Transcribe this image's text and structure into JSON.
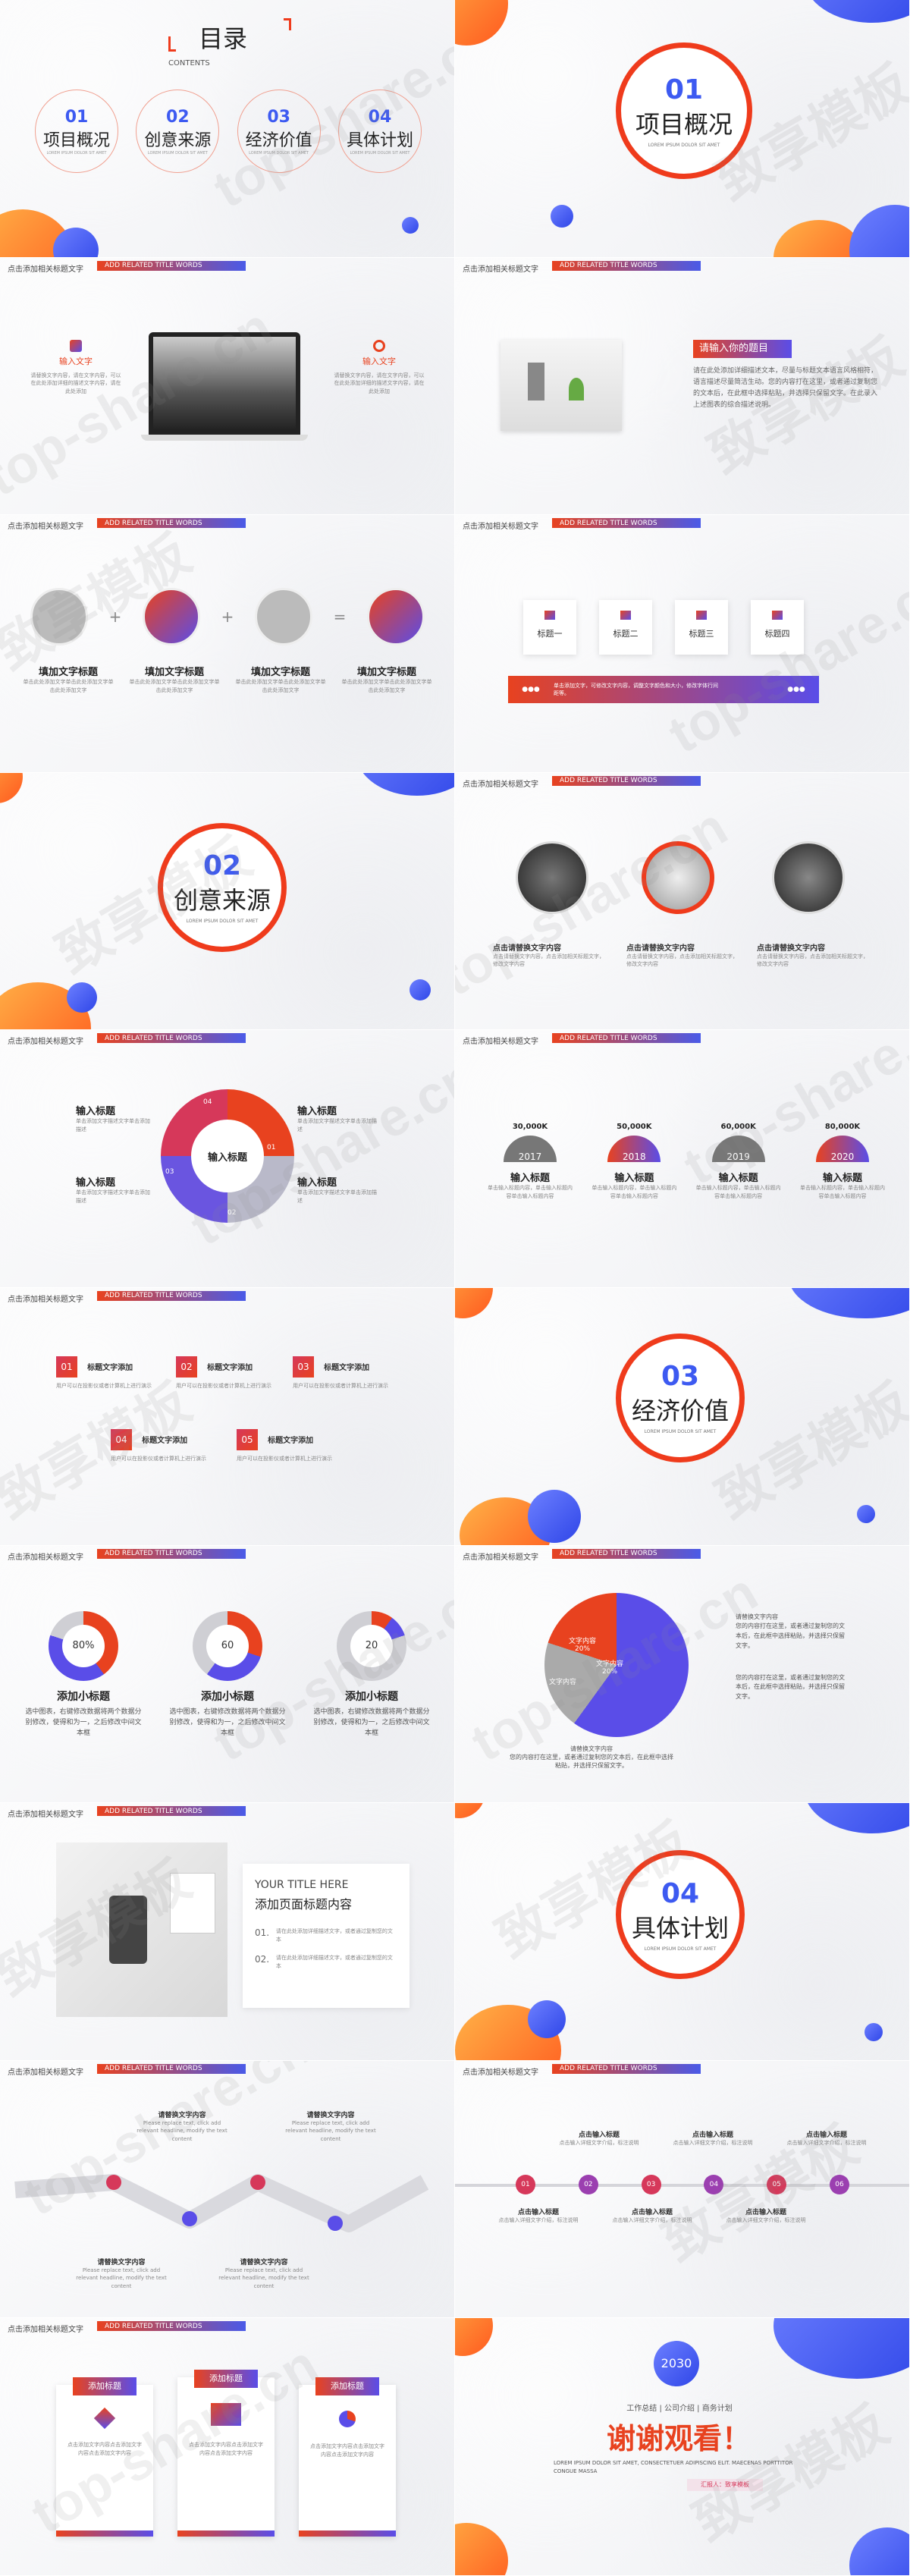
{
  "common": {
    "header_left": "点击添加相关标题文字",
    "header_right": "ADD RELATED TITLE WORDS",
    "wm1": "top-share.cn",
    "wm2": "致享模板"
  },
  "toc": {
    "title": "目录",
    "subtitle": "CONTENTS",
    "tiny": "LOREM IPSUM DOLOR SIT AMET",
    "items": [
      {
        "num": "01",
        "label": "项目概况"
      },
      {
        "num": "02",
        "label": "创意来源"
      },
      {
        "num": "03",
        "label": "经济价值"
      },
      {
        "num": "04",
        "label": "具体计划"
      }
    ]
  },
  "sec1": {
    "num": "01",
    "title": "项目概况",
    "sub": "LOREM IPSUM DOLOR SIT AMET"
  },
  "s3": {
    "left_title": "输入文字",
    "left_text": "请替换文字内容，请在文字内容，可以在此处添加详细的描述文字内容，请在此处添加",
    "right_title": "输入文字",
    "right_text": "请替换文字内容，请在文字内容，可以在此处添加详细的描述文字内容，请在此处添加"
  },
  "s4": {
    "heading": "请输入你的题目",
    "text": "请在此处添加详细描述文本，尽量与标题文本语言风格相符，语言描述尽量简洁生动。您的内容打在这里，或者通过复制您的文本后，在此框中选择粘贴，并选择只保留文字。在此录入上述图表的综合描述说明。"
  },
  "s5": {
    "items": [
      {
        "label": "填加文字标题",
        "text": "单击此处添加文字单击此处添加文字单击此处添加文字"
      },
      {
        "label": "填加文字标题",
        "text": "单击此处添加文字单击此处添加文字单击此处添加文字"
      },
      {
        "label": "填加文字标题",
        "text": "单击此处添加文字单击此处添加文字单击此处添加文字"
      },
      {
        "label": "填加文字标题",
        "text": "单击此处添加文字单击此处添加文字单击此处添加文字"
      }
    ],
    "ops": [
      "+",
      "+",
      "="
    ]
  },
  "s6": {
    "cards": [
      "标题一",
      "标题二",
      "标题三",
      "标题四"
    ],
    "bar_text": "单击添加文字，可修改文字内容，调整文字颜色和大小，修改字体行间距等。",
    "dots": "●●●"
  },
  "sec2": {
    "num": "02",
    "title": "创意来源",
    "sub": "LOREM IPSUM DOLOR SIT AMET"
  },
  "s8": {
    "items": [
      {
        "title": "点击请替换文字内容",
        "text": "点击请替换文字内容，点击添加相关标题文字，修改文字内容"
      },
      {
        "title": "点击请替换文字内容",
        "text": "点击请替换文字内容，点击添加相关标题文字，修改文字内容"
      },
      {
        "title": "点击请替换文字内容",
        "text": "点击请替换文字内容，点击添加相关标题文字，修改文字内容"
      }
    ]
  },
  "s9": {
    "center": "输入标题",
    "labels": [
      {
        "t": "输入标题",
        "d": "单击添加文字描述文字单击添加描述"
      },
      {
        "t": "输入标题",
        "d": "单击添加文字描述文字单击添加描述"
      },
      {
        "t": "输入标题",
        "d": "单击添加文字描述文字单击添加描述"
      },
      {
        "t": "输入标题",
        "d": "单击添加文字描述文字单击添加描述"
      }
    ],
    "nums": [
      "01",
      "02",
      "03",
      "04"
    ]
  },
  "s10": {
    "items": [
      {
        "value": "30,000K",
        "year": "2017",
        "title": "输入标题",
        "text": "单击输入标题内容，单击输入标题内容单击输入标题内容"
      },
      {
        "value": "50,000K",
        "year": "2018",
        "title": "输入标题",
        "text": "单击输入标题内容，单击输入标题内容单击输入标题内容"
      },
      {
        "value": "60,000K",
        "year": "2019",
        "title": "输入标题",
        "text": "单击输入标题内容，单击输入标题内容单击输入标题内容"
      },
      {
        "value": "80,000K",
        "year": "2020",
        "title": "输入标题",
        "text": "单击输入标题内容，单击输入标题内容单击输入标题内容"
      }
    ]
  },
  "s11": {
    "items": [
      {
        "num": "01",
        "title": "标题文字添加",
        "text": "用户可以在投影仪或者计算机上进行演示"
      },
      {
        "num": "02",
        "title": "标题文字添加",
        "text": "用户可以在投影仪或者计算机上进行演示"
      },
      {
        "num": "03",
        "title": "标题文字添加",
        "text": "用户可以在投影仪或者计算机上进行演示"
      },
      {
        "num": "04",
        "title": "标题文字添加",
        "text": "用户可以在投影仪或者计算机上进行演示"
      },
      {
        "num": "05",
        "title": "标题文字添加",
        "text": "用户可以在投影仪或者计算机上进行演示"
      }
    ]
  },
  "sec3": {
    "num": "03",
    "title": "经济价值",
    "sub": "LOREM IPSUM DOLOR SIT AMET"
  },
  "s13": {
    "items": [
      {
        "pct": "80%",
        "value": 0.8,
        "title": "添加小标题",
        "text": "选中图表，右键修改数据将两个数据分别修改，使得和为一，之后修改中间文本框"
      },
      {
        "pct": "60",
        "value": 0.6,
        "title": "添加小标题",
        "text": "选中图表，右键修改数据将两个数据分别修改，使得和为一，之后修改中间文本框"
      },
      {
        "pct": "20",
        "value": 0.2,
        "title": "添加小标题",
        "text": "选中图表，右键修改数据将两个数据分别修改，使得和为一，之后修改中间文本框"
      }
    ]
  },
  "s14": {
    "pie": [
      {
        "label": "文字内容",
        "pct": "20%",
        "value": 20
      },
      {
        "label": "文字内容",
        "pct": "20%",
        "value": 20
      },
      {
        "label": "文字内容",
        "pct": "",
        "value": 60
      }
    ],
    "bottom_text": "请替换文字内容\n您的内容打在这里，或者通过复制您的文本后，在此框中选择粘贴，并选择只保留文字。",
    "r1": "请替换文字内容\n您的内容打在这里，或者通过复制您的文本后，在此框中选择粘贴，并选择只保留文字。",
    "r2": "您的内容打在这里，或者通过复制您的文本后，在此框中选择粘贴，并选择只保留文字。"
  },
  "s15": {
    "en": "YOUR TITLE HERE",
    "cn": "添加页面标题内容",
    "items": [
      {
        "n": "01.",
        "t": "请在此处添加详细描述文字，或者通过复制您的文本"
      },
      {
        "n": "02.",
        "t": "请在此处添加详细描述文字，或者通过复制您的文本"
      }
    ]
  },
  "sec4": {
    "num": "04",
    "title": "具体计划",
    "sub": "LOREM IPSUM DOLOR SIT AMET"
  },
  "s17": {
    "items": [
      {
        "t": "请替换文字内容",
        "d": "Please replace text, click add relevant headline, modify the text content"
      },
      {
        "t": "请替换文字内容",
        "d": "Please replace text, click add relevant headline, modify the text content"
      },
      {
        "t": "请替换文字内容",
        "d": "Please replace text, click add relevant headline, modify the text content"
      },
      {
        "t": "请替换文字内容",
        "d": "Please replace text, click add relevant headline, modify the text content"
      }
    ]
  },
  "s18": {
    "nums": [
      "01",
      "02",
      "03",
      "04",
      "05",
      "06"
    ],
    "top": [
      {
        "t": "点击输入标题",
        "d": "点击输入详细文字介绍，标注说明"
      },
      {
        "t": "点击输入标题",
        "d": "点击输入详细文字介绍，标注说明"
      },
      {
        "t": "点击输入标题",
        "d": "点击输入详细文字介绍，标注说明"
      }
    ],
    "bottom": [
      {
        "t": "点击输入标题",
        "d": "点击输入详细文字介绍，标注说明"
      },
      {
        "t": "点击输入标题",
        "d": "点击输入详细文字介绍，标注说明"
      },
      {
        "t": "点击输入标题",
        "d": "点击输入详细文字介绍，标注说明"
      }
    ]
  },
  "s19": {
    "cards": [
      {
        "t": "添加标题",
        "d": "点击添加文字内容点击添加文字内容点击添加文字内容"
      },
      {
        "t": "添加标题",
        "d": "点击添加文字内容点击添加文字内容点击添加文字内容"
      },
      {
        "t": "添加标题",
        "d": "点击添加文字内容点击添加文字内容点击添加文字内容"
      }
    ]
  },
  "s20": {
    "year": "2030",
    "nav": "工作总结 | 公司介绍 | 商务计划",
    "thanks": "谢谢观看！",
    "en": "LOREM IPSUM DOLOR SIT AMET, CONSECTETUER ADIPISCING ELIT. MAECENAS PORTTITOR CONGUE MASSA",
    "reporter": "汇报人：致享模板"
  }
}
